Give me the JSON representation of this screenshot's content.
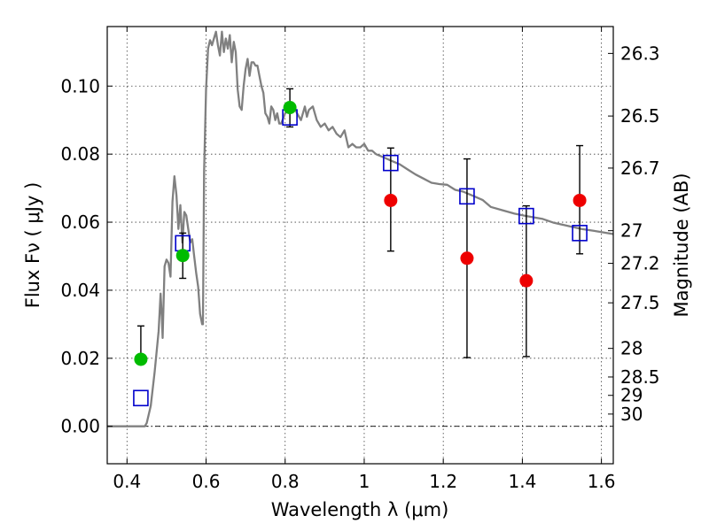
{
  "chart_data": {
    "type": "scatter",
    "title": "",
    "xlabel": "Wavelength  λ (μm)",
    "ylabel": "Flux  Fν  ( μJy )",
    "ylabel_right": "Magnitude (AB)",
    "xlim": [
      0.35,
      1.63
    ],
    "ylim": [
      -0.011,
      0.1175
    ],
    "x_ticks": [
      0.4,
      0.6,
      0.8,
      1.0,
      1.2,
      1.4,
      1.6
    ],
    "x_tick_labels": [
      "0.4",
      "0.6",
      "0.8",
      "1",
      "1.2",
      "1.4",
      "1.6"
    ],
    "y_ticks": [
      0.0,
      0.02,
      0.04,
      0.06,
      0.08,
      0.1
    ],
    "y_tick_labels": [
      "0.00",
      "0.02",
      "0.04",
      "0.06",
      "0.08",
      "0.10"
    ],
    "right_ticks": [
      {
        "label": "26.3",
        "flux": 0.1096
      },
      {
        "label": "26.5",
        "flux": 0.0912
      },
      {
        "label": "26.7",
        "flux": 0.0759
      },
      {
        "label": "27",
        "flux": 0.0575
      },
      {
        "label": "27.2",
        "flux": 0.0479
      },
      {
        "label": "27.5",
        "flux": 0.0363
      },
      {
        "label": "28",
        "flux": 0.0229
      },
      {
        "label": "28.5",
        "flux": 0.0145
      },
      {
        "label": "29",
        "flux": 0.0091
      },
      {
        "label": "30",
        "flux": 0.0036
      }
    ],
    "grid": true,
    "zero_line": true,
    "colors": {
      "model": "#808080",
      "green_points": "#00bb00",
      "red_points": "#ee0000",
      "model_boxes": "#0000cc",
      "error_bars": "#000000"
    },
    "model_spectrum": [
      [
        0.35,
        0.0
      ],
      [
        0.43,
        0.0
      ],
      [
        0.445,
        0.0
      ],
      [
        0.45,
        0.001
      ],
      [
        0.46,
        0.006
      ],
      [
        0.47,
        0.016
      ],
      [
        0.48,
        0.028
      ],
      [
        0.485,
        0.039
      ],
      [
        0.488,
        0.032
      ],
      [
        0.49,
        0.026
      ],
      [
        0.495,
        0.047
      ],
      [
        0.5,
        0.049
      ],
      [
        0.505,
        0.048
      ],
      [
        0.51,
        0.044
      ],
      [
        0.515,
        0.066
      ],
      [
        0.52,
        0.0735
      ],
      [
        0.525,
        0.068
      ],
      [
        0.53,
        0.058
      ],
      [
        0.535,
        0.065
      ],
      [
        0.54,
        0.054
      ],
      [
        0.545,
        0.063
      ],
      [
        0.55,
        0.062
      ],
      [
        0.555,
        0.058
      ],
      [
        0.56,
        0.054
      ],
      [
        0.565,
        0.055
      ],
      [
        0.57,
        0.05
      ],
      [
        0.575,
        0.045
      ],
      [
        0.58,
        0.041
      ],
      [
        0.585,
        0.033
      ],
      [
        0.59,
        0.03
      ],
      [
        0.592,
        0.03
      ],
      [
        0.595,
        0.075
      ],
      [
        0.6,
        0.099
      ],
      [
        0.605,
        0.111
      ],
      [
        0.61,
        0.1135
      ],
      [
        0.615,
        0.112
      ],
      [
        0.62,
        0.114
      ],
      [
        0.625,
        0.116
      ],
      [
        0.63,
        0.112
      ],
      [
        0.635,
        0.109
      ],
      [
        0.64,
        0.116
      ],
      [
        0.645,
        0.11
      ],
      [
        0.65,
        0.114
      ],
      [
        0.655,
        0.111
      ],
      [
        0.66,
        0.115
      ],
      [
        0.665,
        0.107
      ],
      [
        0.67,
        0.113
      ],
      [
        0.675,
        0.11
      ],
      [
        0.68,
        0.099
      ],
      [
        0.685,
        0.094
      ],
      [
        0.69,
        0.093
      ],
      [
        0.695,
        0.1
      ],
      [
        0.7,
        0.105
      ],
      [
        0.705,
        0.108
      ],
      [
        0.71,
        0.103
      ],
      [
        0.715,
        0.107
      ],
      [
        0.72,
        0.107
      ],
      [
        0.725,
        0.106
      ],
      [
        0.73,
        0.106
      ],
      [
        0.735,
        0.103
      ],
      [
        0.74,
        0.1
      ],
      [
        0.745,
        0.098
      ],
      [
        0.75,
        0.092
      ],
      [
        0.755,
        0.091
      ],
      [
        0.76,
        0.089
      ],
      [
        0.765,
        0.094
      ],
      [
        0.77,
        0.093
      ],
      [
        0.775,
        0.09
      ],
      [
        0.78,
        0.092
      ],
      [
        0.785,
        0.089
      ],
      [
        0.79,
        0.089
      ],
      [
        0.8,
        0.092
      ],
      [
        0.81,
        0.093
      ],
      [
        0.82,
        0.095
      ],
      [
        0.83,
        0.092
      ],
      [
        0.84,
        0.09
      ],
      [
        0.85,
        0.094
      ],
      [
        0.855,
        0.091
      ],
      [
        0.86,
        0.093
      ],
      [
        0.87,
        0.094
      ],
      [
        0.88,
        0.09
      ],
      [
        0.89,
        0.088
      ],
      [
        0.9,
        0.089
      ],
      [
        0.91,
        0.087
      ],
      [
        0.92,
        0.088
      ],
      [
        0.93,
        0.086
      ],
      [
        0.94,
        0.085
      ],
      [
        0.95,
        0.087
      ],
      [
        0.96,
        0.082
      ],
      [
        0.97,
        0.083
      ],
      [
        0.98,
        0.082
      ],
      [
        0.99,
        0.082
      ],
      [
        1.0,
        0.083
      ],
      [
        1.01,
        0.081
      ],
      [
        1.02,
        0.081
      ],
      [
        1.03,
        0.08
      ],
      [
        1.05,
        0.079
      ],
      [
        1.07,
        0.078
      ],
      [
        1.09,
        0.077
      ],
      [
        1.11,
        0.0755
      ],
      [
        1.13,
        0.074
      ],
      [
        1.15,
        0.0728
      ],
      [
        1.17,
        0.0716
      ],
      [
        1.19,
        0.0712
      ],
      [
        1.21,
        0.071
      ],
      [
        1.23,
        0.0695
      ],
      [
        1.25,
        0.069
      ],
      [
        1.28,
        0.0675
      ],
      [
        1.3,
        0.0665
      ],
      [
        1.32,
        0.0645
      ],
      [
        1.35,
        0.0635
      ],
      [
        1.38,
        0.0625
      ],
      [
        1.41,
        0.0618
      ],
      [
        1.45,
        0.061
      ],
      [
        1.48,
        0.0598
      ],
      [
        1.52,
        0.0588
      ],
      [
        1.55,
        0.058
      ],
      [
        1.58,
        0.0575
      ],
      [
        1.63,
        0.0565
      ]
    ],
    "series": [
      {
        "marker": "circle-green",
        "points": [
          {
            "x": 0.435,
            "y": 0.0197,
            "yerr_low": 0.0197,
            "yerr_high": 0.0295
          },
          {
            "x": 0.541,
            "y": 0.0502,
            "yerr_low": 0.0435,
            "yerr_high": 0.0568
          },
          {
            "x": 0.812,
            "y": 0.0937,
            "yerr_low": 0.088,
            "yerr_high": 0.0992
          }
        ]
      },
      {
        "marker": "circle-red",
        "points": [
          {
            "x": 1.067,
            "y": 0.0664,
            "yerr_low": 0.0515,
            "yerr_high": 0.0818
          },
          {
            "x": 1.26,
            "y": 0.0494,
            "yerr_low": 0.0202,
            "yerr_high": 0.0786
          },
          {
            "x": 1.41,
            "y": 0.0428,
            "yerr_low": 0.0205,
            "yerr_high": 0.0648
          },
          {
            "x": 1.545,
            "y": 0.0664,
            "yerr_low": 0.0507,
            "yerr_high": 0.0825
          }
        ]
      },
      {
        "marker": "square-blue-open",
        "points": [
          {
            "x": 0.435,
            "y": 0.0083
          },
          {
            "x": 0.541,
            "y": 0.0538
          },
          {
            "x": 0.812,
            "y": 0.0908
          },
          {
            "x": 1.067,
            "y": 0.0774
          },
          {
            "x": 1.26,
            "y": 0.0676
          },
          {
            "x": 1.41,
            "y": 0.0618
          },
          {
            "x": 1.545,
            "y": 0.0568
          }
        ]
      }
    ]
  }
}
